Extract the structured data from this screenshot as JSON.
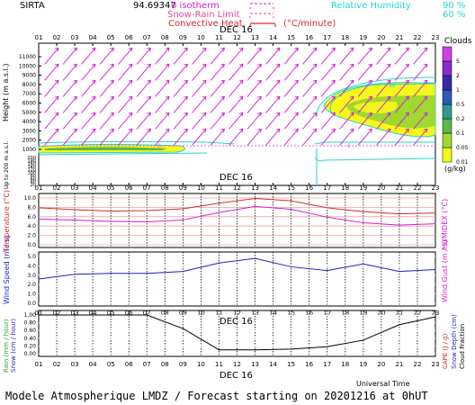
{
  "header": {
    "site": "SIRTA",
    "coords": "94.69347",
    "legend_isotherm": "0 isotherm",
    "legend_snow": "Snow-Rain Limit",
    "legend_conv": "Convective Heat.",
    "legend_conv_unit": "(°C/minute)",
    "rh_label": "Relative Humidity",
    "rh_90": "90 %",
    "rh_60": "60 %"
  },
  "footer": {
    "text": "Modele Atmospherique LMDZ / Forecast starting on 20201216 at 0hUT",
    "universal_time": "Universal Time"
  },
  "colors": {
    "magenta": "#d21ed2",
    "cyan": "#2ad2d2",
    "yellow": "#f7f719",
    "green": "#8fcf2e",
    "red": "#d22c2c",
    "blue": "#1e1ec8",
    "isotherm_pink": "#e060e0"
  },
  "hours": [
    "01",
    "02",
    "03",
    "04",
    "05",
    "06",
    "07",
    "08",
    "09",
    "10",
    "11",
    "12",
    "13",
    "14",
    "15",
    "16",
    "17",
    "18",
    "19",
    "20",
    "21",
    "22",
    "23"
  ],
  "day_label": "DEC 16",
  "clouds": {
    "title": "Clouds",
    "unit": "(g/kg)",
    "levels": [
      "0.01",
      "0.05",
      "0.1",
      "0.2",
      "0.5",
      "1",
      "2",
      "5"
    ],
    "colors": [
      "#f7f719",
      "#a0d830",
      "#5cb848",
      "#2e9a8c",
      "#2a5ab8",
      "#3a2aa8",
      "#8a2ad0",
      "#d040e8"
    ]
  },
  "chart_data": [
    {
      "type": "contour",
      "name": "vertical-section",
      "ylabel": "Height (m a.s.l.)",
      "ylabel_low": "Up to 200 m a.s.l.",
      "y_ticks_upper": [
        "11000",
        "10000",
        "9000",
        "8000",
        "7000",
        "6000",
        "5000",
        "4000",
        "3000",
        "2000",
        "1000"
      ],
      "y_ticks_lower": [
        "200",
        "180",
        "160",
        "140",
        "120",
        "100",
        "80",
        "60",
        "40",
        "20"
      ],
      "rh_contour_label": "90",
      "isotherm_label": "0",
      "wind_arrows": "magenta, pointing north-east at all levels"
    },
    {
      "type": "line",
      "name": "temperature",
      "ylabel": "Temperature (°C)",
      "ylabel_right": "HUMIDEX (°C)",
      "yticks": [
        "10.0",
        "8.0",
        "6.0",
        "4.0",
        "2.0",
        "0.0"
      ],
      "ylim": [
        0,
        11
      ],
      "x": [
        1,
        3,
        5,
        7,
        9,
        11,
        13,
        15,
        17,
        19,
        21,
        23
      ],
      "series": [
        {
          "color": "red",
          "values": [
            7.9,
            7.5,
            7.2,
            7.3,
            7.7,
            8.9,
            9.9,
            9.4,
            7.9,
            7.1,
            6.6,
            6.8
          ]
        },
        {
          "color": "magenta",
          "values": [
            5.5,
            5.3,
            5.0,
            4.9,
            5.3,
            6.9,
            8.2,
            7.6,
            5.9,
            4.7,
            4.2,
            4.5
          ]
        }
      ]
    },
    {
      "type": "line",
      "name": "wind",
      "ylabel": "Wind Speed (m / s)",
      "ylabel_right": "Wind Gust (m / s)",
      "yticks": [
        "5.0",
        "4.0",
        "3.0",
        "2.0",
        "1.0",
        "0.0"
      ],
      "ylim": [
        0,
        5
      ],
      "x": [
        1,
        3,
        5,
        7,
        9,
        11,
        13,
        15,
        17,
        19,
        21,
        23
      ],
      "series": [
        {
          "color": "blue",
          "values": [
            2.6,
            3.1,
            3.2,
            3.2,
            3.4,
            4.3,
            4.8,
            3.9,
            3.5,
            4.2,
            3.4,
            3.6
          ]
        }
      ]
    },
    {
      "type": "line",
      "name": "precipitation",
      "ylabel": "Rain (mm / hour)",
      "ylabel2": "Snow (cm / hour)",
      "ylabel_right": "Snow Depth (cm)",
      "ylabel_right2": "Cloud Fraction",
      "ylabel_right3": "CAPE (J / g)",
      "yticks": [
        "1.00",
        "0.80",
        "0.60",
        "0.40",
        "0.20",
        "0.00"
      ],
      "ylim": [
        0,
        1
      ],
      "x": [
        1,
        3,
        5,
        7,
        9,
        11,
        13,
        15,
        17,
        19,
        21,
        23
      ],
      "series": [
        {
          "name": "Cloud Fraction",
          "color": "black",
          "values": [
            1.0,
            1.0,
            1.0,
            1.0,
            0.65,
            0.1,
            0.1,
            0.12,
            0.18,
            0.35,
            0.75,
            0.95
          ]
        }
      ]
    }
  ]
}
